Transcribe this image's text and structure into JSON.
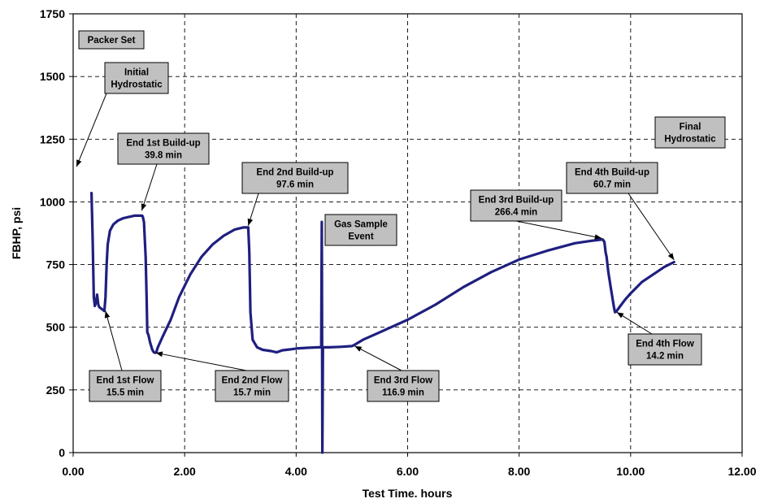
{
  "chart_data": {
    "type": "line",
    "title": "",
    "xlabel": "Test Time. hours",
    "ylabel": "FBHP, psi",
    "xlim": [
      0,
      12
    ],
    "ylim": [
      0,
      1750
    ],
    "grid": true,
    "x_ticks": [
      0,
      2,
      4,
      6,
      8,
      10,
      12
    ],
    "x_tick_labels": [
      "0.00",
      "2.00",
      "4.00",
      "6.00",
      "8.00",
      "10.00",
      "12.00"
    ],
    "y_ticks": [
      0,
      250,
      500,
      750,
      1000,
      1250,
      1500,
      1750
    ],
    "y_tick_labels": [
      "0",
      "250",
      "500",
      "750",
      "1000",
      "1250",
      "1500",
      "1750"
    ],
    "series": [
      {
        "color": "#1f1f80",
        "x": [
          0.33,
          0.35,
          0.37,
          0.39,
          0.41,
          0.43,
          0.45,
          0.47,
          0.5,
          0.53,
          0.56,
          0.58,
          0.6,
          0.62,
          0.66,
          0.72,
          0.8,
          0.9,
          1.0,
          1.1,
          1.2,
          1.24,
          1.25,
          1.27,
          1.3,
          1.32,
          1.33,
          1.35,
          1.38,
          1.42,
          1.45,
          1.47,
          1.49,
          1.52,
          1.6,
          1.75,
          1.9,
          2.1,
          2.3,
          2.5,
          2.7,
          2.9,
          3.05,
          3.14,
          3.16,
          3.18,
          3.22,
          3.3,
          3.4,
          3.55,
          3.65,
          3.75,
          3.9,
          4.0,
          4.2,
          4.4,
          4.45,
          4.46,
          4.47,
          4.48,
          4.5,
          4.6,
          4.8,
          5.0,
          5.05,
          5.2,
          5.5,
          6.0,
          6.5,
          7.0,
          7.5,
          8.0,
          8.5,
          9.0,
          9.3,
          9.5,
          9.53,
          9.55,
          9.57,
          9.6,
          9.65,
          9.7,
          9.72,
          9.75,
          9.8,
          9.9,
          10.0,
          10.2,
          10.4,
          10.6,
          10.78
        ],
        "y": [
          1035,
          850,
          620,
          585,
          600,
          630,
          590,
          580,
          575,
          570,
          565,
          620,
          750,
          830,
          885,
          910,
          925,
          935,
          940,
          945,
          945,
          945,
          940,
          920,
          780,
          600,
          480,
          470,
          440,
          410,
          400,
          398,
          400,
          420,
          460,
          530,
          620,
          710,
          780,
          830,
          865,
          890,
          898,
          898,
          800,
          560,
          450,
          420,
          410,
          405,
          400,
          408,
          412,
          415,
          418,
          420,
          420,
          920,
          0,
          420,
          420,
          420,
          422,
          425,
          430,
          450,
          480,
          530,
          590,
          660,
          720,
          770,
          805,
          835,
          845,
          850,
          840,
          800,
          780,
          720,
          650,
          580,
          560,
          565,
          580,
          610,
          635,
          680,
          710,
          740,
          760
        ]
      }
    ],
    "annotations": [
      {
        "lines": [
          "Packer Set"
        ]
      },
      {
        "lines": [
          "Initial",
          "Hydrostatic"
        ]
      },
      {
        "lines": [
          "End 1st Build-up",
          "39.8 min"
        ]
      },
      {
        "lines": [
          "End 2nd Build-up",
          "97.6 min"
        ]
      },
      {
        "lines": [
          "Gas Sample",
          "Event"
        ]
      },
      {
        "lines": [
          "End 3rd Build-up",
          "266.4 min"
        ]
      },
      {
        "lines": [
          "End 4th Build-up",
          "60.7 min"
        ]
      },
      {
        "lines": [
          "Final",
          "Hydrostatic"
        ]
      },
      {
        "lines": [
          "End 1st Flow",
          "15.5 min"
        ]
      },
      {
        "lines": [
          "End 2nd Flow",
          "15.7 min"
        ]
      },
      {
        "lines": [
          "End 3rd Flow",
          "116.9 min"
        ]
      },
      {
        "lines": [
          "End 4th Flow",
          "14.2 min"
        ]
      }
    ]
  }
}
